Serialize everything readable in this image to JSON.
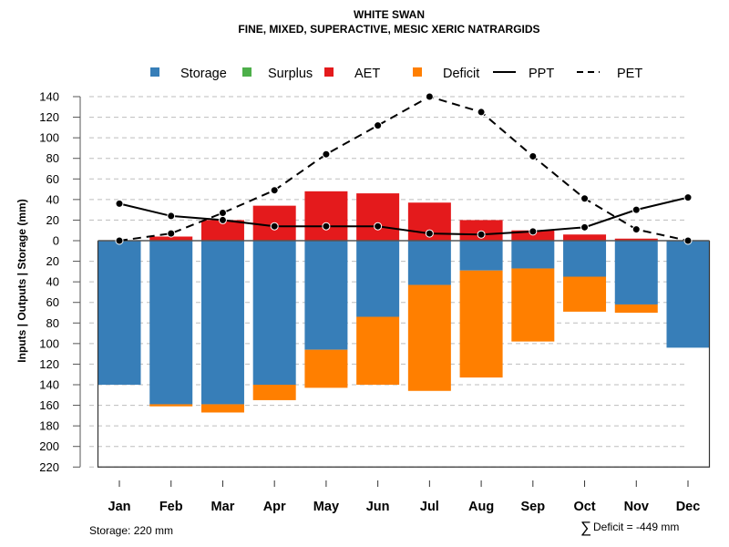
{
  "chart_data": {
    "type": "bar",
    "title": "WHITE SWAN",
    "subtitle": "FINE, MIXED, SUPERACTIVE, MESIC XERIC NATRARGIDS",
    "ylabel": "Inputs | Outputs | Storage     (mm)",
    "xlabel": "",
    "ylim": [
      -220,
      140
    ],
    "yticks": [
      140,
      120,
      100,
      80,
      60,
      40,
      20,
      0,
      -20,
      -40,
      -60,
      -80,
      -100,
      -120,
      -140,
      -160,
      -180,
      -200,
      -220
    ],
    "ytick_labels": [
      "140",
      "120",
      "100",
      "80",
      "60",
      "40",
      "20",
      "0",
      "20",
      "40",
      "60",
      "80",
      "100",
      "120",
      "140",
      "160",
      "180",
      "200",
      "220"
    ],
    "grid": true,
    "legend_position": "top",
    "categories": [
      "Jan",
      "Feb",
      "Mar",
      "Apr",
      "May",
      "Jun",
      "Jul",
      "Aug",
      "Sep",
      "Oct",
      "Nov",
      "Dec"
    ],
    "legend": [
      {
        "name": "Storage",
        "type": "bar",
        "color": "#377EB8"
      },
      {
        "name": "Surplus",
        "type": "bar",
        "color": "#4DAF4A"
      },
      {
        "name": "AET",
        "type": "bar",
        "color": "#E41A1C"
      },
      {
        "name": "Deficit",
        "type": "bar",
        "color": "#FF7F00"
      },
      {
        "name": "PPT",
        "type": "line",
        "style": "solid",
        "color": "#000000"
      },
      {
        "name": "PET",
        "type": "line",
        "style": "dashed",
        "color": "#000000"
      }
    ],
    "series": [
      {
        "name": "Storage",
        "color": "#377EB8",
        "values": [
          -140,
          -159,
          -159,
          -140,
          -106,
          -74,
          -43,
          -29,
          -27,
          -35,
          -62,
          -104
        ]
      },
      {
        "name": "Surplus",
        "color": "#4DAF4A",
        "values": [
          0,
          0,
          0,
          0,
          0,
          0,
          0,
          0,
          0,
          0,
          0,
          0
        ]
      },
      {
        "name": "AET",
        "color": "#E41A1C",
        "values": [
          0,
          4,
          20,
          34,
          48,
          46,
          37,
          20,
          10,
          6,
          2,
          0
        ]
      },
      {
        "name": "Deficit",
        "color": "#FF7F00",
        "values": [
          0,
          -2,
          -8,
          -15,
          -37,
          -66,
          -103,
          -104,
          -71,
          -34,
          -8,
          0
        ]
      },
      {
        "name": "PPT",
        "color": "#000000",
        "values": [
          36,
          24,
          20,
          14,
          14,
          14,
          7,
          6,
          9,
          13,
          30,
          42
        ]
      },
      {
        "name": "PET",
        "color": "#000000",
        "values": [
          0,
          7,
          27,
          49,
          84,
          112,
          140,
          125,
          82,
          41,
          11,
          0
        ]
      }
    ],
    "annotations": {
      "storage": "Storage: 220 mm",
      "deficit_sum": "Deficit = -449 mm",
      "sigma": "∑"
    }
  }
}
